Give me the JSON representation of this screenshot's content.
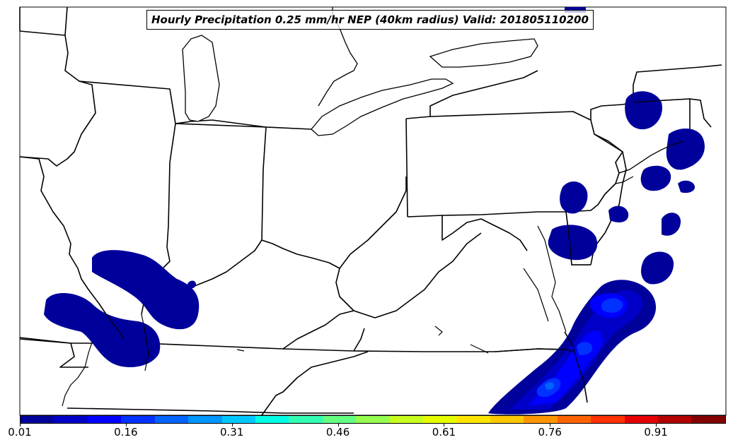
{
  "title": "Hourly Precipitation 0.25 mm/hr NEP (40km radius) Valid: 201805110200",
  "colorbar": {
    "colors": [
      "#00009a",
      "#0000c8",
      "#0000ff",
      "#0032ff",
      "#0064ff",
      "#0096ff",
      "#00c8ff",
      "#00ffe6",
      "#32ffb4",
      "#64ff82",
      "#96ff50",
      "#c8ff1e",
      "#e6ff00",
      "#ffe600",
      "#ffc800",
      "#ff9600",
      "#ff6400",
      "#ff3200",
      "#e60000",
      "#b40000",
      "#820000"
    ],
    "tick_labels": [
      "0.01",
      "0.16",
      "0.31",
      "0.46",
      "0.61",
      "0.76",
      "0.91"
    ]
  },
  "map": {
    "colors": {
      "ocean_bg": "#ffffff",
      "state_lines": "#000000",
      "level_1": "#00009a",
      "level_2": "#0000c8",
      "level_3": "#0000ff",
      "level_4": "#0032ff",
      "level_5": "#0064ff"
    }
  }
}
